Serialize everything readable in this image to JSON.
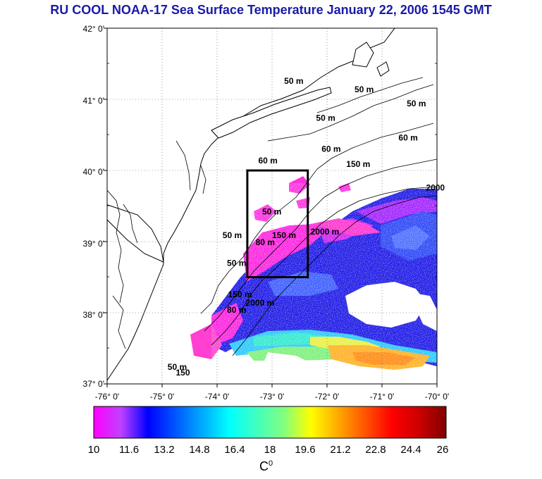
{
  "title": "RU COOL  NOAA-17 Sea Surface Temperature January 22, 2006 1545 GMT",
  "map": {
    "lat_labels": [
      "42° 0'",
      "41° 0'",
      "40° 0'",
      "39° 0'",
      "38° 0'",
      "37° 0'"
    ],
    "lon_labels": [
      "-76° 0'",
      "-75° 0'",
      "-74° 0'",
      "-73° 0'",
      "-72° 0'",
      "-71° 0'",
      "-70° 0'"
    ],
    "lat_range": [
      37,
      42
    ],
    "lon_range": [
      -76,
      -70
    ],
    "grid": "dotted",
    "study_box": {
      "lon": [
        -73.45,
        -72.35
      ],
      "lat": [
        38.5,
        40.0
      ]
    },
    "isobaths": [
      {
        "text": "50 m",
        "lon": -73.82,
        "lat": 38.66
      },
      {
        "text": "50 m",
        "lon": -73.9,
        "lat": 39.05
      },
      {
        "text": "50 m",
        "lon": -73.18,
        "lat": 39.38
      },
      {
        "text": "50 m",
        "lon": -72.2,
        "lat": 40.7
      },
      {
        "text": "50 m",
        "lon": -71.5,
        "lat": 41.1
      },
      {
        "text": "50 m",
        "lon": -70.55,
        "lat": 40.9
      },
      {
        "text": "50 m",
        "lon": -72.78,
        "lat": 41.22
      },
      {
        "text": "60 m",
        "lon": -72.1,
        "lat": 40.26
      },
      {
        "text": "60 m",
        "lon": -73.25,
        "lat": 40.1
      },
      {
        "text": "60 m",
        "lon": -70.7,
        "lat": 40.42
      },
      {
        "text": "80 m",
        "lon": -73.3,
        "lat": 38.95
      },
      {
        "text": "80 m",
        "lon": -73.82,
        "lat": 38.0
      },
      {
        "text": "150 m",
        "lon": -73.0,
        "lat": 39.05
      },
      {
        "text": "150 m",
        "lon": -71.65,
        "lat": 40.05
      },
      {
        "text": "150 m",
        "lon": -73.8,
        "lat": 38.22
      },
      {
        "text": "2000 m",
        "lon": -72.3,
        "lat": 39.1
      },
      {
        "text": "2000 m",
        "lon": -73.48,
        "lat": 38.1
      },
      {
        "text": "2000",
        "lon": -70.2,
        "lat": 39.72
      },
      {
        "text": "50 m",
        "lon": -74.9,
        "lat": 37.2
      },
      {
        "text": "150",
        "lon": -74.75,
        "lat": 37.12
      }
    ]
  },
  "colorbar": {
    "ticks": [
      "10",
      "11.6",
      "13.2",
      "14.8",
      "16.4",
      "18",
      "19.6",
      "21.2",
      "22.8",
      "24.4",
      "26"
    ],
    "range": [
      10,
      26
    ],
    "unit": "C",
    "unit_sup": "0",
    "colors": [
      "#ff00ff",
      "#c040ff",
      "#0000ff",
      "#0055ff",
      "#00aaff",
      "#00ffff",
      "#40ffbf",
      "#80ff80",
      "#ffff00",
      "#ffaa00",
      "#ff5500",
      "#ff0000",
      "#cc0000",
      "#800000"
    ]
  }
}
